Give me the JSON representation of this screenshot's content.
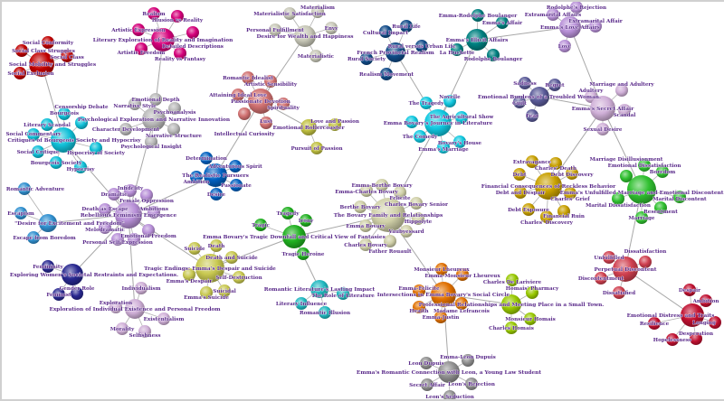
{
  "clusters": [
    {
      "hub": "Social Mobility and Struggles",
      "color": "#c00000",
      "children": [
        "Social Conformity",
        "Social Class Struggles",
        "Social Class",
        "Social Exclusion"
      ]
    },
    {
      "hub": "Literary Exploration of Reality and Imagination",
      "color": "#d4007a",
      "children": [
        "Realism",
        "Illusion vs Reality",
        "Artistic Expression",
        "Detailed Descriptions",
        "Artistic Freedom",
        "Reality vs Fantasy"
      ]
    },
    {
      "hub": "Psychological Exploration and Narrative Innovation",
      "color": "#b8b8b8",
      "children": [
        "Emotional Depth",
        "Narrative Style",
        "Psychoanalysis",
        "Character Development",
        "Narrative Structure",
        "Psychological Insight"
      ]
    },
    {
      "hub": "Critiques of Bourgeois Society and Hypocrisy",
      "color": "#10c0d8",
      "children": [
        "Bourgeois",
        "Literary Scandal",
        "Censorship Debate",
        "Social Commentary",
        "Hypocrisy of Society",
        "Social Critique",
        "Bourgeois Society",
        "Hypocrisy"
      ]
    },
    {
      "hub": "The Realistic Pursuers",
      "color": "#0060c0",
      "children": [
        "Determination",
        "Adventurous Spirit",
        "Ambition",
        "Passionate",
        "Desire"
      ]
    },
    {
      "hub": "\"Desire for Excitement and Freedom\"",
      "color": "#3090d0",
      "children": [
        "Romantic Adventure",
        "Escapism",
        "Escape from Boredom"
      ]
    },
    {
      "hub": "Rebellious Feminism Emergence",
      "color": "#b890d8",
      "children": [
        "Dramatic",
        "Infidelity",
        "Female Oppression",
        "Death as Escape",
        "Ambitions",
        "Melodramatic",
        "Emotional Freedom",
        "Personal Self-Expression",
        ""
      ]
    },
    {
      "hub": "Exploring Women's Societal Restraints and Expectations.",
      "color": "#282890",
      "children": [
        "Femininity",
        "Feminist",
        "Gender Role"
      ]
    },
    {
      "hub": "Exploration of Individual Existence and Personal Freedom",
      "color": "#d0b0d8",
      "children": [
        "Individualism",
        "Exploration",
        "Existentialism",
        "Morality",
        "Selfishness"
      ]
    },
    {
      "hub": "Tragic Endings: Emma's Despair and Suicide",
      "color": "#c8c850",
      "children": [
        "Suicide",
        "Death",
        "Death and Suicide",
        "Emma's Despair",
        "Self-Destruction",
        "Suicidal",
        "Emma's Suicide"
      ]
    },
    {
      "hub": "Desire for Wealth and Happiness",
      "color": "#c8c8b8",
      "children": [
        "Materialistic Satisfaction",
        "Materialism",
        "Personal Fulfillment",
        "Envy",
        "Materialistic"
      ]
    },
    {
      "hub": "Passionate Devotion",
      "color": "#d07070",
      "children": [
        "Romantic Idealist",
        "Artistic Sensibility",
        "Attaining Ideal Love",
        "Spirituality",
        "Intellectual Curiosity",
        "Lust"
      ]
    },
    {
      "hub": "Emotional Rollercoaster",
      "color": "#c0c040",
      "children": [
        "Love and Passion",
        "Pursuit of Passion"
      ]
    },
    {
      "hub": "Emma Bovary's Tragic Downfall and Critical View of Fantasies",
      "color": "#20b020",
      "children": [
        "Tragedy",
        "Irony",
        "Tragic",
        "Tragic Heroine"
      ]
    },
    {
      "hub": "Romantic Literature's Lasting Impact",
      "color": "#20b8c0",
      "children": [
        "The Role of Literature",
        "Literary Influence",
        "Romantic Illusion"
      ]
    },
    {
      "hub": "French Provincial Realism",
      "color": "#104a88",
      "children": [
        "Rural Life",
        "Cultural Impact",
        "Rural versus Urban Life",
        "Rural Society",
        "Realism Movement"
      ]
    },
    {
      "hub": "Emma's Illicit Affairs",
      "color": "#008080",
      "children": [
        "Emma-Rodolphe Boulanger",
        "Emma's Affair",
        "La Huchette",
        "Rodolphe Boulanger"
      ]
    },
    {
      "hub": "Emma Bovary's Journey in Literature",
      "color": "#10c8e0",
      "children": [
        "The Tragedy",
        "Novelle",
        "The Agricultural Show",
        "",
        "The Comedy",
        "Bovary's House",
        "Emma's Marriage"
      ]
    },
    {
      "hub": "Emma's Love Affairs",
      "color": "#b890d8",
      "children": [
        "Rodolphe's Rejection",
        "Extramarital Affairs",
        "Extramarital Affair",
        "Love"
      ]
    },
    {
      "hub": "Emotional Burdens of a Troubled Woman.",
      "color": "#5a5a98",
      "children": [
        "Sadness",
        "Regret",
        "Guilt",
        "Fear"
      ]
    },
    {
      "hub": "Emma's Secret Affair",
      "color": "#d0b0d8",
      "children": [
        "Adultery",
        "Marriage and Adultery",
        "Scandal",
        "Sexual Desire"
      ]
    },
    {
      "hub": "Financial Consequences of Reckless Behavior",
      "color": "#c8a000",
      "children": [
        "Extravagance",
        "Charles' Death",
        "Debt Discovery",
        "Debt",
        "Debt and Despair",
        "Charles' Grief",
        "Debt Exposure",
        "Financial Ruin",
        "Charles' Discovery"
      ]
    },
    {
      "hub": "Emma's Unfulfilled Marriage and Emotional Discontent",
      "color": "#30c030",
      "children": [
        "Emotional Dissatisfaction",
        "Boredom",
        "Marriage Disillusionment",
        "Marital Dissatisfaction",
        "Marital Discontent",
        "Resentment",
        "Marriage"
      ]
    },
    {
      "hub": "Perpetual Discontent",
      "color": "#d04050",
      "children": [
        "Unfulfilled",
        "Dissatisfaction",
        "Discontentment",
        "Dissatisfied"
      ]
    },
    {
      "hub": "Emotional Distress and Traits",
      "color": "#c01030",
      "children": [
        "Despair",
        "Ambition",
        "Longing",
        "Resilience",
        "Hopelessness",
        "Desperation"
      ]
    },
    {
      "hub": "The Bovary Family and Relationships",
      "color": "#d0d0a8",
      "children": [
        "Emma-Berthe Bovary",
        "Emma-Charles Bovary",
        "Felicite",
        "Charles Bovary Senior",
        "Berthe Bovary",
        "Hippolyte",
        "Emma Bovary",
        "Vaubyessard",
        "Charles Bovary",
        "Father Rouault"
      ]
    },
    {
      "hub": "Intersections in Emma Bovary's Social Circle",
      "color": "#e07000",
      "children": [
        "Monsieur Lheureux",
        "Emma-Monsieur Lheureux",
        "Emma-Felicite",
        "Madame Lefrancois",
        "Health",
        "Emma-Justin"
      ]
    },
    {
      "hub": "Professional Relationships and Meeting Place in a Small Town.",
      "color": "#98c800",
      "children": [
        "Charles De Lariviere",
        "Homais' Pharmacy",
        "Monsieur Homais",
        "Charles Homais"
      ]
    },
    {
      "hub": "Emma's Romantic Connection with Leon, a Young Law Student",
      "color": "#909090",
      "children": [
        "Leon Dupuis",
        "Emma-Leon Dupuis",
        "Secret Affair",
        "Leon's Rejection",
        "Leon's Seduction"
      ]
    }
  ]
}
